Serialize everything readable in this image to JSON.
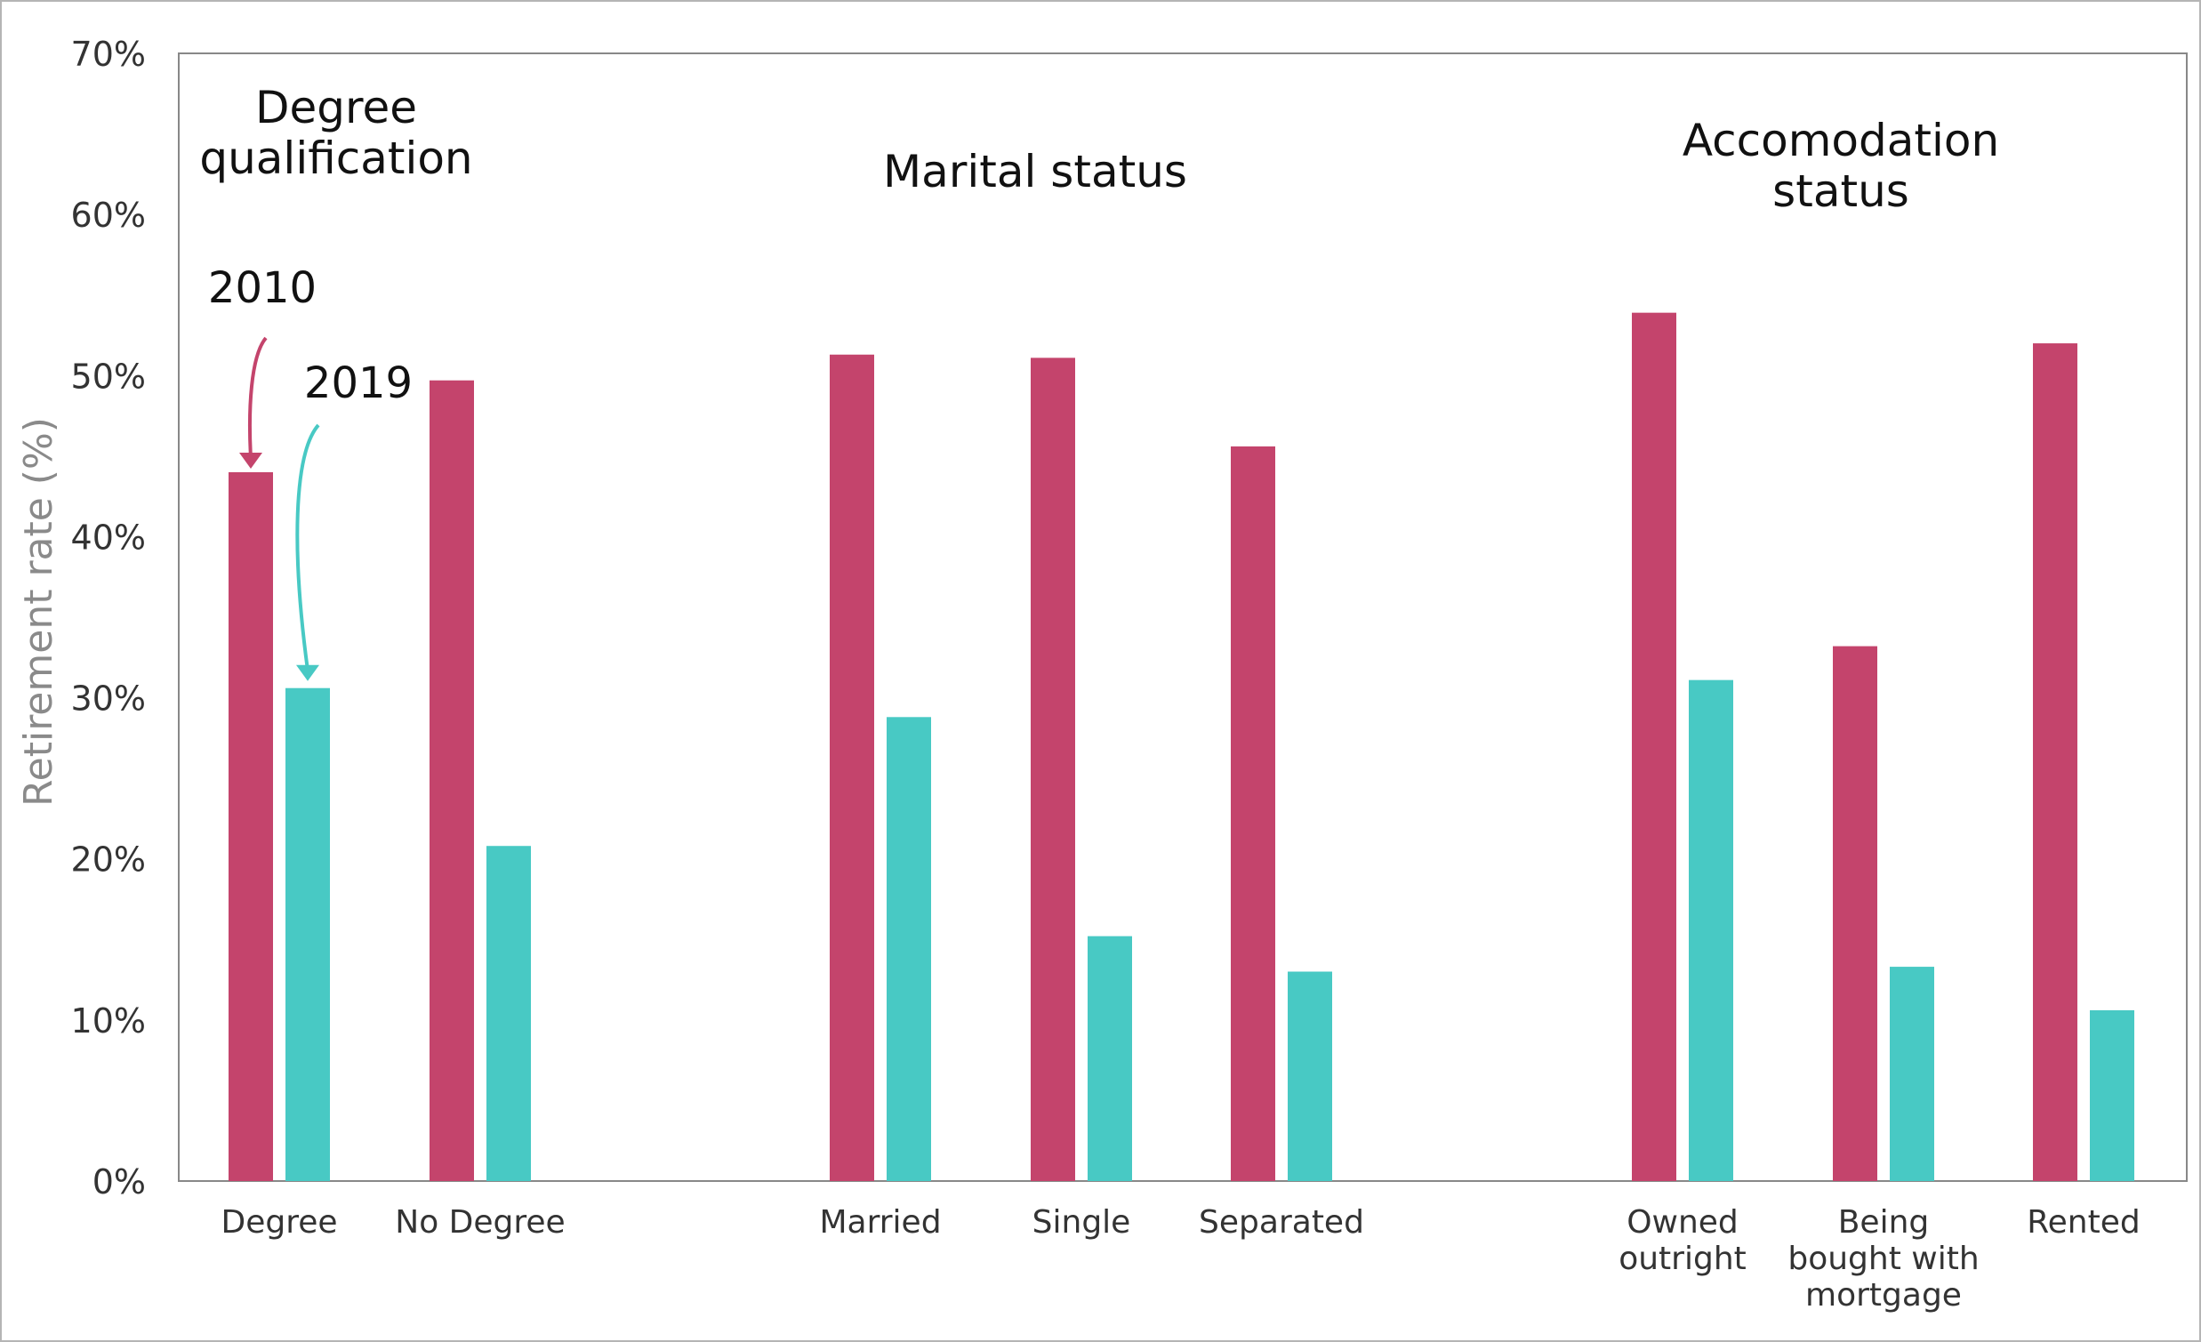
{
  "chart_data": {
    "type": "bar",
    "title": "",
    "xlabel": "",
    "ylabel": "Retirement rate (%)",
    "ylim": [
      0,
      70
    ],
    "y_ticks": [
      "0%",
      "10%",
      "20%",
      "30%",
      "40%",
      "50%",
      "60%",
      "70%"
    ],
    "grid": false,
    "legend": "annotations on first category",
    "groups": [
      {
        "label": "Degree\nqualification",
        "categories": [
          "Degree",
          "No Degree"
        ]
      },
      {
        "label": "Marital status",
        "categories": [
          "Married",
          "Single",
          "Separated"
        ]
      },
      {
        "label": "Accomodation\nstatus",
        "categories": [
          "Owned\noutright",
          "Being\nbought with\nmortgage",
          "Rented"
        ]
      }
    ],
    "categories": [
      "Degree",
      "No Degree",
      "Married",
      "Single",
      "Separated",
      "Owned\noutright",
      "Being\nbought with\nmortgage",
      "Rented"
    ],
    "series": [
      {
        "name": "2010",
        "color": "#c4446c",
        "values": [
          44.0,
          49.7,
          51.3,
          51.1,
          45.6,
          53.9,
          33.2,
          52.0
        ]
      },
      {
        "name": "2019",
        "color": "#48c9c4",
        "values": [
          30.6,
          20.8,
          28.8,
          15.2,
          13.0,
          31.1,
          13.3,
          10.6
        ]
      }
    ]
  }
}
